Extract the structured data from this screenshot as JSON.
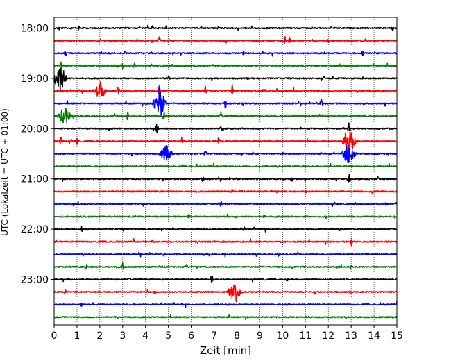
{
  "chart_data": {
    "type": "line",
    "title": "",
    "xlabel": "Zeit  [min]",
    "ylabel": "UTC (Lokalzeit = UTC + 01:00)",
    "xlim": [
      0,
      15
    ],
    "x_ticks": [
      0,
      1,
      2,
      3,
      4,
      5,
      6,
      7,
      8,
      9,
      10,
      11,
      12,
      13,
      14,
      15
    ],
    "y_ticks": [
      "18:00",
      "19:00",
      "20:00",
      "21:00",
      "22:00",
      "23:00"
    ],
    "grid": "vertical dotted",
    "trace_interval_minutes": 15,
    "colors": [
      "#000000",
      "#ff0000",
      "#0000ff",
      "#008000"
    ],
    "traces": [
      {
        "start": "18:00",
        "color": "#000000",
        "events": [
          [
            0.2,
            4
          ],
          [
            1.1,
            5
          ],
          [
            4.3,
            5
          ],
          [
            7.2,
            4
          ],
          [
            14.8,
            5
          ]
        ]
      },
      {
        "start": "18:15",
        "color": "#ff0000",
        "events": [
          [
            2.0,
            5
          ],
          [
            4.6,
            9
          ],
          [
            10.1,
            6
          ],
          [
            10.3,
            5
          ],
          [
            12.0,
            4
          ]
        ]
      },
      {
        "start": "18:30",
        "color": "#0000ff",
        "events": [
          [
            0.5,
            5
          ],
          [
            3.1,
            4
          ],
          [
            8.3,
            4
          ],
          [
            13.5,
            4
          ]
        ]
      },
      {
        "start": "18:45",
        "color": "#008000",
        "events": [
          [
            0.3,
            6
          ],
          [
            3.0,
            7
          ],
          [
            3.5,
            6
          ],
          [
            12.5,
            3
          ],
          [
            14.0,
            4
          ]
        ]
      },
      {
        "start": "19:00",
        "color": "#000000",
        "events": [
          [
            0.25,
            22
          ],
          [
            5.0,
            4
          ],
          [
            11.8,
            5
          ]
        ]
      },
      {
        "start": "19:15",
        "color": "#ff0000",
        "events": [
          [
            2.0,
            14
          ],
          [
            2.8,
            8
          ],
          [
            4.6,
            10
          ],
          [
            6.6,
            9
          ],
          [
            7.8,
            9
          ]
        ]
      },
      {
        "start": "19:30",
        "color": "#0000ff",
        "events": [
          [
            4.6,
            22
          ],
          [
            7.5,
            9
          ],
          [
            11.7,
            8
          ]
        ]
      },
      {
        "start": "19:45",
        "color": "#008000",
        "events": [
          [
            0.45,
            14
          ],
          [
            3.2,
            8
          ],
          [
            4.8,
            8
          ],
          [
            7.3,
            8
          ]
        ]
      },
      {
        "start": "20:00",
        "color": "#000000",
        "events": [
          [
            4.5,
            8
          ],
          [
            7.3,
            4
          ],
          [
            12.9,
            10
          ]
        ]
      },
      {
        "start": "20:15",
        "color": "#ff0000",
        "events": [
          [
            0.3,
            8
          ],
          [
            1.0,
            6
          ],
          [
            5.6,
            7
          ],
          [
            7.2,
            6
          ],
          [
            12.9,
            22
          ]
        ]
      },
      {
        "start": "20:30",
        "color": "#0000ff",
        "events": [
          [
            4.9,
            12
          ],
          [
            6.6,
            7
          ],
          [
            12.9,
            18
          ]
        ]
      },
      {
        "start": "20:45",
        "color": "#008000",
        "events": [
          [
            3.0,
            3
          ],
          [
            13.0,
            4
          ]
        ]
      },
      {
        "start": "21:00",
        "color": "#000000",
        "events": [
          [
            1.0,
            3
          ],
          [
            6.5,
            5
          ],
          [
            10.4,
            4
          ],
          [
            12.9,
            10
          ]
        ]
      },
      {
        "start": "21:15",
        "color": "#ff0000",
        "events": [
          [
            3.2,
            4
          ],
          [
            7.8,
            4
          ],
          [
            9.5,
            3
          ],
          [
            11.0,
            3
          ]
        ]
      },
      {
        "start": "21:30",
        "color": "#0000ff",
        "events": [
          [
            7.3,
            5
          ],
          [
            14.5,
            3
          ]
        ]
      },
      {
        "start": "21:45",
        "color": "#008000",
        "events": [
          [
            5.9,
            4
          ],
          [
            9.2,
            5
          ],
          [
            11.9,
            4
          ]
        ]
      },
      {
        "start": "22:00",
        "color": "#000000",
        "events": [
          [
            1.2,
            4
          ],
          [
            3.0,
            4
          ],
          [
            8.3,
            5
          ],
          [
            12.5,
            3
          ]
        ]
      },
      {
        "start": "22:15",
        "color": "#ff0000",
        "events": [
          [
            0.1,
            3
          ],
          [
            4.3,
            4
          ],
          [
            9.9,
            3
          ],
          [
            13.0,
            9
          ]
        ]
      },
      {
        "start": "22:30",
        "color": "#0000ff",
        "events": [
          [
            4.8,
            4
          ],
          [
            6.8,
            3
          ],
          [
            9.8,
            4
          ]
        ]
      },
      {
        "start": "22:45",
        "color": "#008000",
        "events": [
          [
            1.4,
            6
          ],
          [
            3.0,
            6
          ],
          [
            5.8,
            4
          ],
          [
            13.0,
            3
          ]
        ]
      },
      {
        "start": "23:00",
        "color": "#000000",
        "events": [
          [
            6.9,
            8
          ],
          [
            3.3,
            3
          ],
          [
            10.2,
            3
          ]
        ]
      },
      {
        "start": "23:15",
        "color": "#ff0000",
        "events": [
          [
            7.9,
            18
          ],
          [
            0.5,
            4
          ],
          [
            4.4,
            3
          ]
        ]
      },
      {
        "start": "23:30",
        "color": "#0000ff",
        "events": [
          [
            1.2,
            4
          ],
          [
            10.0,
            3
          ]
        ]
      },
      {
        "start": "23:45",
        "color": "#008000",
        "events": [
          [
            4.0,
            2
          ]
        ]
      }
    ]
  }
}
